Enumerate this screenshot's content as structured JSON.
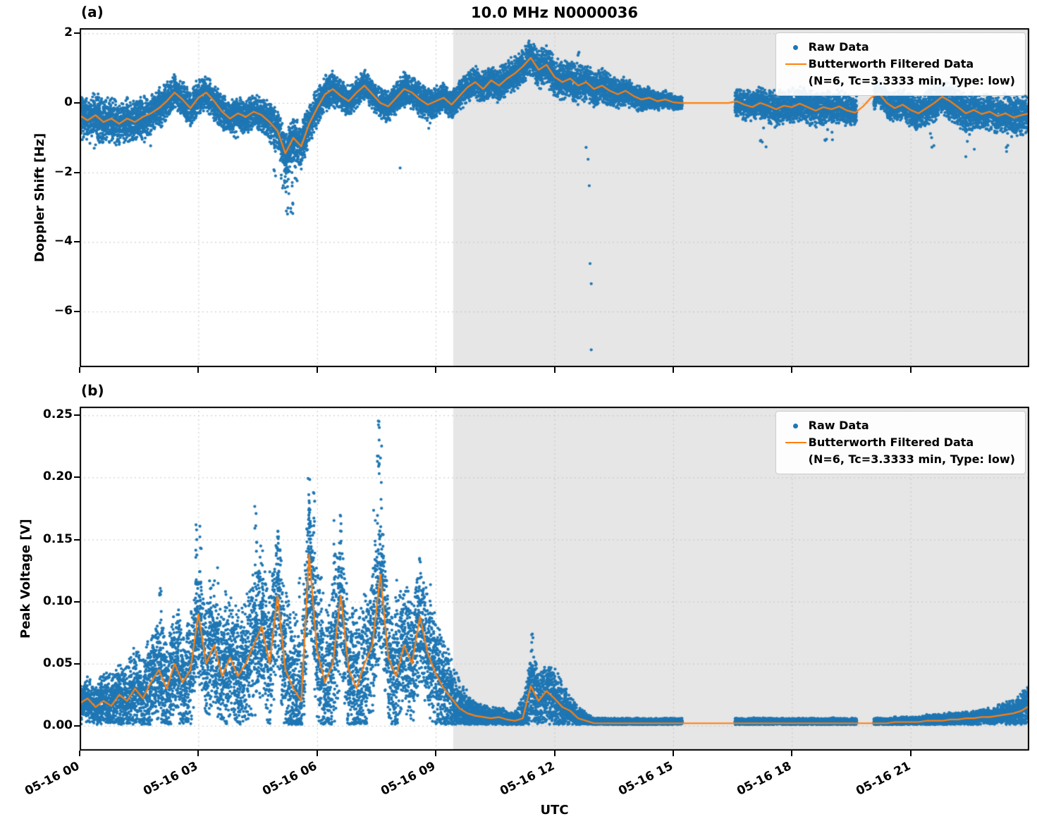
{
  "colors": {
    "raw": "#1f77b4",
    "filtered": "#ff7f0e",
    "shade": "#e6e6e6",
    "grid": "#c4c4c4",
    "frame": "#000000"
  },
  "chart_data": [
    {
      "id": "doppler-shift",
      "type": "scatter",
      "panel_label": "(a)",
      "title": "10.0 MHz N0000036",
      "xlabel": "",
      "ylabel": "Doppler Shift [Hz]",
      "x_unit": "hours since 05-16 00:00 UTC",
      "xlim_hours": [
        0,
        24
      ],
      "ylim": [
        -7.6,
        2.15
      ],
      "x_tick_hours": [
        0,
        3,
        6,
        9,
        12,
        15,
        18,
        21
      ],
      "x_tick_labels": [],
      "y_ticks": [
        2,
        0,
        -2,
        -4,
        -6
      ],
      "y_tick_labels": [
        "2",
        "0",
        "−2",
        "−4",
        "−6"
      ],
      "grid": true,
      "legend_position": "upper right",
      "legend": {
        "raw_label": "Raw Data",
        "filtered_label": "Butterworth Filtered Data",
        "filtered_sublabel": "(N=6, Tc=3.3333 min, Type: low)"
      },
      "shaded_region_hours": [
        9.44,
        24
      ],
      "gaps_hours": [
        [
          15.23,
          16.56
        ],
        [
          19.64,
          20.07
        ]
      ],
      "series_names": [
        "Raw Data",
        "Butterworth Filtered Data (N=6, Tc=3.3333 min, Type: low)"
      ],
      "filtered": {
        "x_start": 0,
        "x_step": 0.2,
        "y": [
          -0.35,
          -0.5,
          -0.35,
          -0.55,
          -0.45,
          -0.6,
          -0.45,
          -0.55,
          -0.4,
          -0.3,
          -0.15,
          0.05,
          0.3,
          0.1,
          -0.15,
          0.15,
          0.3,
          0.05,
          -0.25,
          -0.45,
          -0.3,
          -0.4,
          -0.25,
          -0.35,
          -0.55,
          -0.8,
          -1.45,
          -1.0,
          -1.25,
          -0.6,
          -0.15,
          0.25,
          0.4,
          0.2,
          0.05,
          0.3,
          0.5,
          0.25,
          0.0,
          -0.1,
          0.15,
          0.4,
          0.3,
          0.1,
          -0.05,
          0.05,
          0.15,
          -0.05,
          0.2,
          0.45,
          0.6,
          0.4,
          0.65,
          0.5,
          0.7,
          0.85,
          1.05,
          1.3,
          0.95,
          1.1,
          0.75,
          0.6,
          0.7,
          0.5,
          0.6,
          0.4,
          0.5,
          0.35,
          0.25,
          0.35,
          0.2,
          0.1,
          0.15,
          0.05,
          0.1,
          0.02,
          0.0,
          0.0,
          0.0,
          0.0,
          0.0,
          0.0,
          0.0,
          0.05,
          -0.05,
          -0.12,
          0.0,
          -0.08,
          -0.18,
          -0.08,
          -0.12,
          -0.02,
          -0.12,
          -0.22,
          -0.12,
          -0.18,
          -0.1,
          -0.22,
          -0.28,
          -0.1,
          0.15,
          0.28,
          0.0,
          -0.15,
          -0.05,
          -0.2,
          -0.3,
          -0.15,
          0.0,
          0.18,
          0.05,
          -0.12,
          -0.3,
          -0.2,
          -0.32,
          -0.25,
          -0.38,
          -0.3,
          -0.42,
          -0.35,
          -0.3
        ]
      },
      "raw_spread": {
        "x": [
          0,
          0.8,
          1.5,
          2.5,
          3.5,
          4.5,
          5.0,
          5.5,
          6.5,
          7.5,
          8.5,
          9.3,
          10,
          11,
          12,
          13,
          14,
          14.8,
          15.2,
          16.6,
          17.5,
          18.5,
          19.6,
          20.1,
          21,
          22,
          23,
          24
        ],
        "s": [
          0.5,
          0.55,
          0.5,
          0.42,
          0.42,
          0.4,
          0.5,
          0.55,
          0.38,
          0.35,
          0.4,
          0.33,
          0.38,
          0.42,
          0.45,
          0.42,
          0.3,
          0.2,
          0.16,
          0.33,
          0.4,
          0.42,
          0.36,
          0.3,
          0.4,
          0.45,
          0.42,
          0.48
        ]
      },
      "clusters": [
        {
          "x": 5.3,
          "w": 0.18,
          "y_to": -3.2,
          "n": 26
        },
        {
          "x": 5.15,
          "w": 0.12,
          "y_to": -2.5,
          "n": 18
        },
        {
          "x": 5.45,
          "w": 0.12,
          "y_to": -2.3,
          "n": 14
        },
        {
          "x": 4.95,
          "w": 0.1,
          "y_to": -2.1,
          "n": 10
        },
        {
          "x": 0.4,
          "w": 0.5,
          "y_to": -1.35,
          "n": 14
        },
        {
          "x": 1.7,
          "w": 0.3,
          "y_to": -1.3,
          "n": 8
        },
        {
          "x": 3.9,
          "w": 0.2,
          "y_to": -1.2,
          "n": 6
        },
        {
          "x": 8.9,
          "w": 0.2,
          "y_to": -1.1,
          "n": 6
        },
        {
          "x": 11.45,
          "w": 0.2,
          "y_to": 1.75,
          "n": 10
        },
        {
          "x": 12.6,
          "w": 0.25,
          "y_to": 1.5,
          "n": 8
        },
        {
          "x": 17.3,
          "w": 0.2,
          "y_to": -1.45,
          "n": 8
        },
        {
          "x": 18.9,
          "w": 0.3,
          "y_to": -1.3,
          "n": 8
        },
        {
          "x": 21.5,
          "w": 0.2,
          "y_to": -1.3,
          "n": 6
        },
        {
          "x": 22.5,
          "w": 0.25,
          "y_to": -1.6,
          "n": 8
        },
        {
          "x": 23.4,
          "w": 0.15,
          "y_to": -1.5,
          "n": 5
        }
      ],
      "outliers": [
        [
          12.93,
          -7.1
        ],
        [
          12.93,
          -5.2
        ],
        [
          12.9,
          -4.62
        ],
        [
          12.88,
          -2.38
        ],
        [
          12.85,
          -1.62
        ],
        [
          12.8,
          -1.28
        ],
        [
          8.1,
          -1.87
        ]
      ],
      "raw_style": {
        "density_per_hour": 700,
        "noise_mult": 1.35,
        "clip_min": null,
        "clip_jitter": 0,
        "seed": 7
      }
    },
    {
      "id": "peak-voltage",
      "type": "scatter",
      "panel_label": "(b)",
      "title": "",
      "xlabel": "UTC",
      "ylabel": "Peak Voltage [V]",
      "x_unit": "hours since 05-16 00:00 UTC",
      "xlim_hours": [
        0,
        24
      ],
      "ylim": [
        -0.02,
        0.257
      ],
      "x_tick_hours": [
        0,
        3,
        6,
        9,
        12,
        15,
        18,
        21
      ],
      "x_tick_labels": [
        "05-16 00",
        "05-16 03",
        "05-16 06",
        "05-16 09",
        "05-16 12",
        "05-16 15",
        "05-16 18",
        "05-16 21"
      ],
      "y_ticks": [
        0.25,
        0.2,
        0.15,
        0.1,
        0.05,
        0.0
      ],
      "y_tick_labels": [
        "0.25",
        "0.20",
        "0.15",
        "0.10",
        "0.05",
        "0.00"
      ],
      "grid": true,
      "legend_position": "upper right",
      "legend": {
        "raw_label": "Raw Data",
        "filtered_label": "Butterworth Filtered Data",
        "filtered_sublabel": "(N=6, Tc=3.3333 min, Type: low)"
      },
      "shaded_region_hours": [
        9.44,
        24
      ],
      "gaps_hours": [
        [
          15.23,
          16.56
        ],
        [
          19.64,
          20.07
        ]
      ],
      "series_names": [
        "Raw Data",
        "Butterworth Filtered Data (N=6, Tc=3.3333 min, Type: low)"
      ],
      "filtered": {
        "x_start": 0,
        "x_step": 0.2,
        "y": [
          0.018,
          0.022,
          0.015,
          0.02,
          0.016,
          0.025,
          0.02,
          0.03,
          0.022,
          0.035,
          0.045,
          0.03,
          0.05,
          0.035,
          0.045,
          0.09,
          0.05,
          0.065,
          0.04,
          0.055,
          0.04,
          0.05,
          0.065,
          0.08,
          0.05,
          0.105,
          0.045,
          0.03,
          0.02,
          0.138,
          0.06,
          0.035,
          0.05,
          0.105,
          0.045,
          0.03,
          0.05,
          0.065,
          0.122,
          0.055,
          0.04,
          0.065,
          0.05,
          0.088,
          0.058,
          0.042,
          0.03,
          0.022,
          0.014,
          0.01,
          0.008,
          0.007,
          0.006,
          0.007,
          0.005,
          0.004,
          0.006,
          0.032,
          0.02,
          0.028,
          0.022,
          0.015,
          0.012,
          0.006,
          0.004,
          0.002,
          0.002,
          0.002,
          0.002,
          0.002,
          0.002,
          0.002,
          0.002,
          0.002,
          0.002,
          0.002,
          0.002,
          0.002,
          0.002,
          0.002,
          0.002,
          0.002,
          0.002,
          0.002,
          0.002,
          0.002,
          0.002,
          0.002,
          0.002,
          0.002,
          0.002,
          0.002,
          0.002,
          0.002,
          0.002,
          0.002,
          0.002,
          0.002,
          0.002,
          0.002,
          0.002,
          0.002,
          0.002,
          0.003,
          0.003,
          0.003,
          0.003,
          0.004,
          0.004,
          0.004,
          0.005,
          0.005,
          0.006,
          0.006,
          0.007,
          0.007,
          0.008,
          0.009,
          0.01,
          0.012,
          0.016
        ]
      },
      "raw_spread": {
        "x": [
          0,
          1,
          2,
          3,
          4,
          5,
          6,
          7,
          8,
          9,
          9.5,
          10,
          10.5,
          11,
          11.4,
          12,
          12.5,
          13,
          14,
          15,
          16.6,
          18,
          19.6,
          20.1,
          21,
          22,
          23,
          23.5,
          24
        ],
        "s": [
          0.012,
          0.02,
          0.03,
          0.035,
          0.04,
          0.045,
          0.045,
          0.045,
          0.04,
          0.035,
          0.02,
          0.008,
          0.006,
          0.005,
          0.02,
          0.018,
          0.008,
          0.003,
          0.003,
          0.003,
          0.003,
          0.003,
          0.003,
          0.003,
          0.003,
          0.004,
          0.005,
          0.008,
          0.012
        ]
      },
      "clusters": [
        {
          "x": 2.05,
          "w": 0.06,
          "y_to": 0.12,
          "n": 12
        },
        {
          "x": 2.5,
          "w": 0.06,
          "y_to": 0.1,
          "n": 9
        },
        {
          "x": 2.95,
          "w": 0.05,
          "y_to": 0.165,
          "n": 14
        },
        {
          "x": 3.05,
          "w": 0.05,
          "y_to": 0.17,
          "n": 12
        },
        {
          "x": 3.3,
          "w": 0.05,
          "y_to": 0.12,
          "n": 9
        },
        {
          "x": 3.5,
          "w": 0.05,
          "y_to": 0.135,
          "n": 10
        },
        {
          "x": 3.7,
          "w": 0.05,
          "y_to": 0.11,
          "n": 8
        },
        {
          "x": 4.0,
          "w": 0.05,
          "y_to": 0.105,
          "n": 8
        },
        {
          "x": 4.45,
          "w": 0.06,
          "y_to": 0.185,
          "n": 14
        },
        {
          "x": 4.6,
          "w": 0.05,
          "y_to": 0.15,
          "n": 10
        },
        {
          "x": 4.8,
          "w": 0.05,
          "y_to": 0.13,
          "n": 8
        },
        {
          "x": 5.0,
          "w": 0.06,
          "y_to": 0.16,
          "n": 12
        },
        {
          "x": 5.15,
          "w": 0.05,
          "y_to": 0.12,
          "n": 8
        },
        {
          "x": 5.55,
          "w": 0.05,
          "y_to": 0.13,
          "n": 8
        },
        {
          "x": 5.8,
          "w": 0.07,
          "y_to": 0.2,
          "n": 16
        },
        {
          "x": 5.92,
          "w": 0.05,
          "y_to": 0.19,
          "n": 10
        },
        {
          "x": 6.1,
          "w": 0.05,
          "y_to": 0.12,
          "n": 8
        },
        {
          "x": 6.45,
          "w": 0.06,
          "y_to": 0.175,
          "n": 12
        },
        {
          "x": 6.6,
          "w": 0.05,
          "y_to": 0.17,
          "n": 10
        },
        {
          "x": 6.9,
          "w": 0.05,
          "y_to": 0.105,
          "n": 8
        },
        {
          "x": 7.45,
          "w": 0.05,
          "y_to": 0.175,
          "n": 10
        },
        {
          "x": 7.55,
          "w": 0.06,
          "y_to": 0.246,
          "n": 16
        },
        {
          "x": 7.62,
          "w": 0.04,
          "y_to": 0.23,
          "n": 8
        },
        {
          "x": 8.0,
          "w": 0.05,
          "y_to": 0.12,
          "n": 8
        },
        {
          "x": 8.3,
          "w": 0.05,
          "y_to": 0.1,
          "n": 7
        },
        {
          "x": 8.55,
          "w": 0.05,
          "y_to": 0.125,
          "n": 8
        },
        {
          "x": 8.85,
          "w": 0.05,
          "y_to": 0.115,
          "n": 8
        },
        {
          "x": 9.1,
          "w": 0.05,
          "y_to": 0.08,
          "n": 6
        },
        {
          "x": 11.45,
          "w": 0.06,
          "y_to": 0.075,
          "n": 12
        },
        {
          "x": 11.55,
          "w": 0.05,
          "y_to": 0.055,
          "n": 8
        },
        {
          "x": 12.0,
          "w": 0.1,
          "y_to": 0.05,
          "n": 10
        }
      ],
      "outliers": [],
      "raw_style": {
        "density_per_hour": 700,
        "noise_mult": 1.5,
        "clip_min": 0.001,
        "clip_jitter": 0.005,
        "seed": 21
      }
    }
  ]
}
